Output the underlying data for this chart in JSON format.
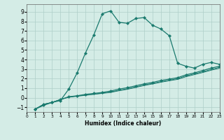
{
  "xlabel": "Humidex (Indice chaleur)",
  "bg_color": "#d4ece6",
  "line_color": "#1a7a6e",
  "grid_color": "#aecfc8",
  "series1_x": [
    1,
    2,
    3,
    4,
    5,
    6,
    7,
    8,
    9,
    10,
    11,
    12,
    13,
    14,
    15,
    16,
    17,
    18,
    19,
    20,
    21,
    22,
    23
  ],
  "series1_y": [
    -1.2,
    -0.8,
    -0.5,
    -0.3,
    0.9,
    2.6,
    4.7,
    6.6,
    8.8,
    9.1,
    7.9,
    7.8,
    8.3,
    8.4,
    7.6,
    7.2,
    6.5,
    3.6,
    3.3,
    3.1,
    3.5,
    3.7,
    3.5
  ],
  "series2_x": [
    1,
    2,
    3,
    4,
    5,
    6,
    7,
    8,
    9,
    10,
    11,
    12,
    13,
    14,
    15,
    16,
    17,
    18,
    19,
    20,
    21,
    22,
    23
  ],
  "series2_y": [
    -1.2,
    -0.7,
    -0.5,
    -0.2,
    0.1,
    0.2,
    0.35,
    0.45,
    0.55,
    0.7,
    0.9,
    1.05,
    1.25,
    1.45,
    1.6,
    1.8,
    1.95,
    2.1,
    2.4,
    2.6,
    2.85,
    3.1,
    3.3
  ],
  "series3_x": [
    1,
    2,
    3,
    4,
    5,
    6,
    7,
    8,
    9,
    10,
    11,
    12,
    13,
    14,
    15,
    16,
    17,
    18,
    19,
    20,
    21,
    22,
    23
  ],
  "series3_y": [
    -1.2,
    -0.7,
    -0.5,
    -0.2,
    0.08,
    0.18,
    0.28,
    0.38,
    0.48,
    0.6,
    0.78,
    0.93,
    1.13,
    1.33,
    1.5,
    1.68,
    1.83,
    2.0,
    2.28,
    2.5,
    2.72,
    2.96,
    3.18
  ],
  "series4_x": [
    1,
    2,
    3,
    4,
    5,
    6,
    7,
    8,
    9,
    10,
    11,
    12,
    13,
    14,
    15,
    16,
    17,
    18,
    19,
    20,
    21,
    22,
    23
  ],
  "series4_y": [
    -1.2,
    -0.7,
    -0.5,
    -0.2,
    0.05,
    0.15,
    0.25,
    0.35,
    0.45,
    0.55,
    0.73,
    0.88,
    1.08,
    1.28,
    1.44,
    1.62,
    1.78,
    1.92,
    2.2,
    2.42,
    2.64,
    2.88,
    3.1
  ],
  "ylim": [
    -1.5,
    9.8
  ],
  "xlim": [
    0,
    23
  ],
  "yticks": [
    -1,
    0,
    1,
    2,
    3,
    4,
    5,
    6,
    7,
    8,
    9
  ],
  "xticks": [
    0,
    1,
    2,
    3,
    4,
    5,
    6,
    7,
    8,
    9,
    10,
    11,
    12,
    13,
    14,
    15,
    16,
    17,
    18,
    19,
    20,
    21,
    22,
    23
  ]
}
